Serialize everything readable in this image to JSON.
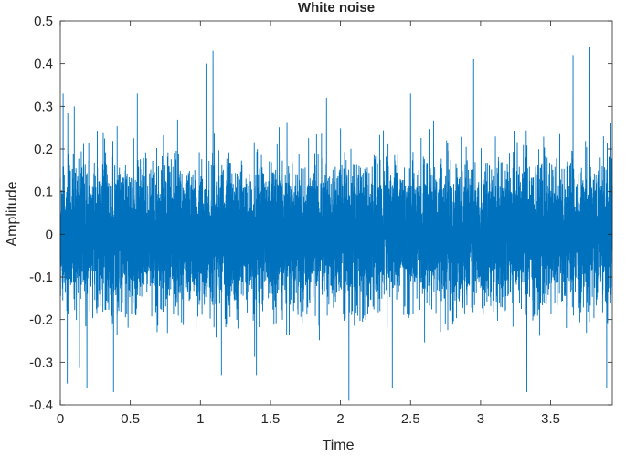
{
  "chart_data": {
    "type": "line",
    "title": "White noise",
    "xlabel": "Time",
    "ylabel": "Amplitude",
    "xlim": [
      0,
      3.94
    ],
    "ylim": [
      -0.4,
      0.5
    ],
    "xticks": [
      0,
      0.5,
      1,
      1.5,
      2,
      2.5,
      3,
      3.5
    ],
    "yticks": [
      -0.4,
      -0.3,
      -0.2,
      -0.1,
      0,
      0.1,
      0.2,
      0.3,
      0.4,
      0.5
    ],
    "xtick_labels": [
      "0",
      "0.5",
      "1",
      "1.5",
      "2",
      "2.5",
      "3",
      "3.5"
    ],
    "ytick_labels": [
      "-0.4",
      "-0.3",
      "-0.2",
      "-0.1",
      "0",
      "0.1",
      "0.2",
      "0.3",
      "0.4",
      "0.5"
    ],
    "grid": false,
    "series": [
      {
        "color": "#0072BD",
        "description_stats": {
          "min": -0.39,
          "max": 0.44,
          "mean": 0.0,
          "std": 0.08
        },
        "peaks": [
          {
            "x": 0.02,
            "y": 0.33
          },
          {
            "x": 0.05,
            "y": -0.35
          },
          {
            "x": 0.1,
            "y": 0.3
          },
          {
            "x": 0.19,
            "y": -0.36
          },
          {
            "x": 0.38,
            "y": -0.37
          },
          {
            "x": 0.55,
            "y": 0.33
          },
          {
            "x": 1.04,
            "y": 0.4
          },
          {
            "x": 1.09,
            "y": 0.43
          },
          {
            "x": 1.15,
            "y": -0.33
          },
          {
            "x": 1.4,
            "y": -0.33
          },
          {
            "x": 1.9,
            "y": 0.32
          },
          {
            "x": 2.06,
            "y": -0.39
          },
          {
            "x": 2.37,
            "y": -0.36
          },
          {
            "x": 2.5,
            "y": 0.33
          },
          {
            "x": 2.95,
            "y": 0.41
          },
          {
            "x": 3.33,
            "y": -0.37
          },
          {
            "x": 3.66,
            "y": 0.42
          },
          {
            "x": 3.78,
            "y": 0.44
          },
          {
            "x": 3.9,
            "y": -0.36
          },
          {
            "x": 3.93,
            "y": 0.26
          }
        ]
      }
    ]
  }
}
